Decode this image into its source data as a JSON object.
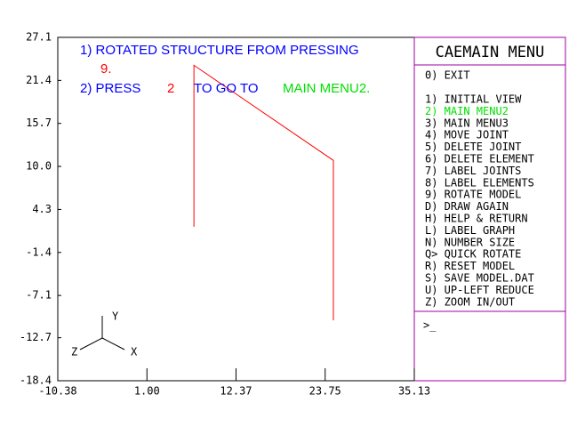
{
  "chart_data": {
    "type": "line",
    "xlim": [
      -10.38,
      35.13
    ],
    "xticks": [
      {
        "value": -10.38,
        "label": "-10.38"
      },
      {
        "value": 1,
        "label": "1.00"
      },
      12.37,
      23.75,
      35.13
    ],
    "ylim": [
      -18.4,
      27.1
    ],
    "yticks": [
      27.1,
      21.4,
      15.7,
      {
        "value": 10,
        "label": "10.0"
      },
      4.3,
      -1.4,
      -7.1,
      -12.7,
      -18.4
    ],
    "series": [
      {
        "color": "#ff0000",
        "x": [
          7.0,
          7.0,
          24.8,
          24.8
        ],
        "values": [
          2.0,
          23.4,
          10.8,
          -10.4
        ]
      }
    ]
  },
  "annotations": [
    {
      "text": "1) ROTATED STRUCTURE FROM PRESSING",
      "color": "#0000ff"
    },
    {
      "text": "9.",
      "color": "#ff0000"
    },
    {
      "text": "2) PRESS",
      "color": "#0000ff"
    },
    {
      "text": "2",
      "color": "#ff0000"
    },
    {
      "text": "TO GO TO",
      "color": "#0000ff"
    },
    {
      "text": "MAIN MENU2.",
      "color": "#00e000"
    }
  ],
  "triad": {
    "y": "Y",
    "x": "X",
    "z": "Z"
  },
  "menu": {
    "title": "CAEMAIN MENU",
    "exit": "0) EXIT",
    "items": [
      {
        "text": "1) INITIAL VIEW",
        "color": "#000000"
      },
      {
        "text": "2) MAIN MENU2",
        "color": "#00e000"
      },
      {
        "text": "3) MAIN MENU3",
        "color": "#000000"
      },
      {
        "text": "4) MOVE JOINT",
        "color": "#000000"
      },
      {
        "text": "5) DELETE JOINT",
        "color": "#000000"
      },
      {
        "text": "6) DELETE ELEMENT",
        "color": "#000000"
      },
      {
        "text": "7) LABEL JOINTS",
        "color": "#000000"
      },
      {
        "text": "8) LABEL ELEMENTS",
        "color": "#000000"
      },
      {
        "text": "9) ROTATE MODEL",
        "color": "#000000"
      },
      {
        "text": "D) DRAW AGAIN",
        "color": "#000000"
      },
      {
        "text": "H) HELP & RETURN",
        "color": "#000000"
      },
      {
        "text": "L) LABEL GRAPH",
        "color": "#000000"
      },
      {
        "text": "N) NUMBER SIZE",
        "color": "#000000"
      },
      {
        "text": "Q> QUICK ROTATE",
        "color": "#000000"
      },
      {
        "text": "R) RESET MODEL",
        "color": "#000000"
      },
      {
        "text": "S) SAVE MODEL.DAT",
        "color": "#000000"
      },
      {
        "text": "U) UP-LEFT REDUCE",
        "color": "#000000"
      },
      {
        "text": "Z) ZOOM IN/OUT",
        "color": "#000000"
      }
    ],
    "prompt": ">_"
  }
}
